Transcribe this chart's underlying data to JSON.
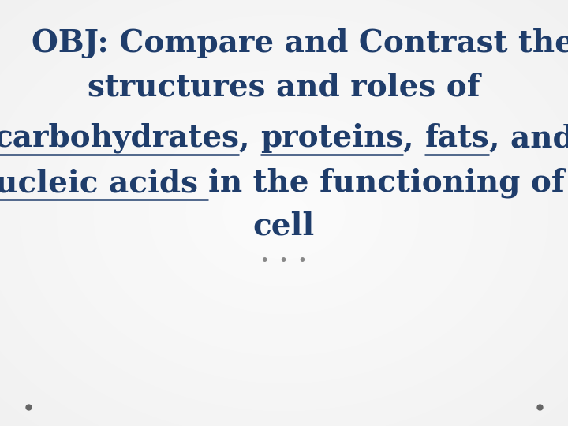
{
  "text_color": "#1F3D6B",
  "dots_color": "#888888",
  "corner_dots_color": "#666666",
  "font_size": 28,
  "dots_font_size": 14,
  "line1": "OBJ: Compare and Contrast the",
  "line2": "structures and roles of",
  "line3_parts": [
    {
      "text": "carbohydrates",
      "underline": true
    },
    {
      "text": ", ",
      "underline": false
    },
    {
      "text": "proteins",
      "underline": true
    },
    {
      "text": ", ",
      "underline": false
    },
    {
      "text": "fats",
      "underline": true
    },
    {
      "text": ", and",
      "underline": false
    }
  ],
  "line4_parts": [
    {
      "text": "nucleic acids ",
      "underline": true
    },
    {
      "text": "in the functioning of a",
      "underline": false
    }
  ],
  "line5": "cell",
  "figsize": [
    7.2,
    5.4
  ],
  "dpi": 100
}
